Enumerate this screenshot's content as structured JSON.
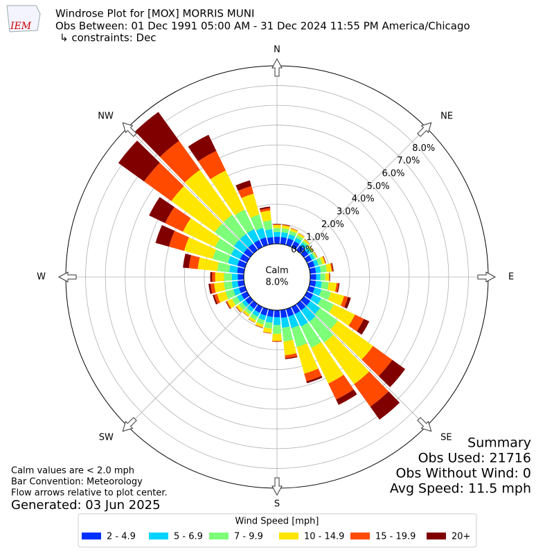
{
  "header": {
    "logo": "IEM",
    "title": "Windrose Plot for [MOX] MORRIS MUNI",
    "subtitle": "Obs Between: 01 Dec 1991 05:00 AM - 31 Dec 2024 11:55 PM America/Chicago",
    "constraints": "↳ constraints: Dec"
  },
  "chart_data": {
    "type": "windrose",
    "x": [
      0,
      10,
      20,
      30,
      40,
      50,
      60,
      70,
      80,
      90,
      100,
      110,
      120,
      130,
      140,
      150,
      160,
      170,
      180,
      190,
      200,
      210,
      220,
      230,
      240,
      250,
      260,
      270,
      280,
      290,
      300,
      310,
      320,
      330,
      340,
      350
    ],
    "xticks": [
      {
        "value": 0,
        "label": "N"
      },
      {
        "value": 45,
        "label": "NE"
      },
      {
        "value": 90,
        "label": "E"
      },
      {
        "value": 135,
        "label": "SE"
      },
      {
        "value": 180,
        "label": "S"
      },
      {
        "value": 225,
        "label": "SW"
      },
      {
        "value": 270,
        "label": "W"
      },
      {
        "value": 315,
        "label": "NW"
      }
    ],
    "ylim": [
      0,
      9
    ],
    "yticks": [
      {
        "value": 0,
        "label": "0.0%"
      },
      {
        "value": 1,
        "label": "1.0%"
      },
      {
        "value": 2,
        "label": "2.0%"
      },
      {
        "value": 3,
        "label": "3.0%"
      },
      {
        "value": 4,
        "label": "4.0%"
      },
      {
        "value": 5,
        "label": "5.0%"
      },
      {
        "value": 6,
        "label": "6.0%"
      },
      {
        "value": 7,
        "label": "7.0%"
      },
      {
        "value": 8,
        "label": "8.0%"
      }
    ],
    "calm_label": "Calm",
    "calm": 8,
    "calm_value_label": "8.0%",
    "legend_title": "Wind Speed [mph]",
    "series": [
      {
        "name": "2 - 4.9",
        "color": "#0030ff",
        "values": [
          0.35,
          0.35,
          0.35,
          0.33,
          0.3,
          0.28,
          0.28,
          0.3,
          0.3,
          0.3,
          0.3,
          0.3,
          0.35,
          0.4,
          0.4,
          0.4,
          0.4,
          0.4,
          0.35,
          0.35,
          0.35,
          0.33,
          0.3,
          0.3,
          0.32,
          0.32,
          0.32,
          0.3,
          0.35,
          0.4,
          0.4,
          0.4,
          0.4,
          0.4,
          0.4,
          0.35
        ]
      },
      {
        "name": "5 - 6.9",
        "color": "#00d4ff",
        "values": [
          0.25,
          0.25,
          0.22,
          0.2,
          0.18,
          0.15,
          0.15,
          0.2,
          0.25,
          0.22,
          0.3,
          0.35,
          0.45,
          0.6,
          0.7,
          0.7,
          0.6,
          0.5,
          0.4,
          0.3,
          0.25,
          0.22,
          0.2,
          0.2,
          0.25,
          0.3,
          0.3,
          0.3,
          0.4,
          0.5,
          0.5,
          0.6,
          0.6,
          0.6,
          0.5,
          0.4
        ]
      },
      {
        "name": "7 - 9.9",
        "color": "#7dff7a",
        "values": [
          0.2,
          0.2,
          0.18,
          0.15,
          0.12,
          0.1,
          0.1,
          0.2,
          0.3,
          0.25,
          0.35,
          0.5,
          0.7,
          1.1,
          1.3,
          1.2,
          1.0,
          0.7,
          0.45,
          0.3,
          0.22,
          0.2,
          0.17,
          0.2,
          0.28,
          0.4,
          0.4,
          0.4,
          0.6,
          0.8,
          0.9,
          1.2,
          1.2,
          1.1,
          0.7,
          0.45
        ]
      },
      {
        "name": "10 - 14.9",
        "color": "#ffe600",
        "values": [
          0.15,
          0.15,
          0.12,
          0.1,
          0.08,
          0.05,
          0.05,
          0.15,
          0.25,
          0.18,
          0.4,
          0.7,
          1.2,
          2.2,
          2.6,
          2.0,
          1.4,
          0.7,
          0.35,
          0.22,
          0.15,
          0.13,
          0.11,
          0.16,
          0.27,
          0.45,
          0.5,
          0.45,
          1.0,
          1.5,
          1.8,
          2.7,
          2.8,
          2.2,
          1.1,
          0.5
        ]
      },
      {
        "name": "15 - 19.9",
        "color": "#ff4a00",
        "values": [
          0.03,
          0.03,
          0.02,
          0.01,
          0.01,
          0.01,
          0.01,
          0.03,
          0.06,
          0.03,
          0.1,
          0.2,
          0.5,
          1.2,
          1.4,
          0.9,
          0.4,
          0.15,
          0.04,
          0.02,
          0.02,
          0.01,
          0.01,
          0.02,
          0.05,
          0.15,
          0.18,
          0.15,
          0.45,
          0.8,
          1.0,
          1.7,
          1.8,
          1.1,
          0.4,
          0.12
        ]
      },
      {
        "name": "20+",
        "color": "#800000",
        "values": [
          0.02,
          0.02,
          0.01,
          0.01,
          0.01,
          0.01,
          0.01,
          0.02,
          0.04,
          0.02,
          0.05,
          0.15,
          0.3,
          0.8,
          0.8,
          0.3,
          0.1,
          0.05,
          0.01,
          0.01,
          0.01,
          0.01,
          0.01,
          0.02,
          0.03,
          0.08,
          0.1,
          0.1,
          0.3,
          0.7,
          0.9,
          1.6,
          1.8,
          0.9,
          0.3,
          0.08
        ]
      }
    ]
  },
  "notes": [
    "Calm values are < 2.0 mph",
    "Bar Convention: Meteorology",
    "Flow arrows relative to plot center."
  ],
  "generated": "Generated: 03 Jun 2025",
  "summary": [
    "Summary",
    "Obs Used: 21716",
    "Obs Without Wind: 0",
    "Avg Speed: 11.5 mph"
  ]
}
